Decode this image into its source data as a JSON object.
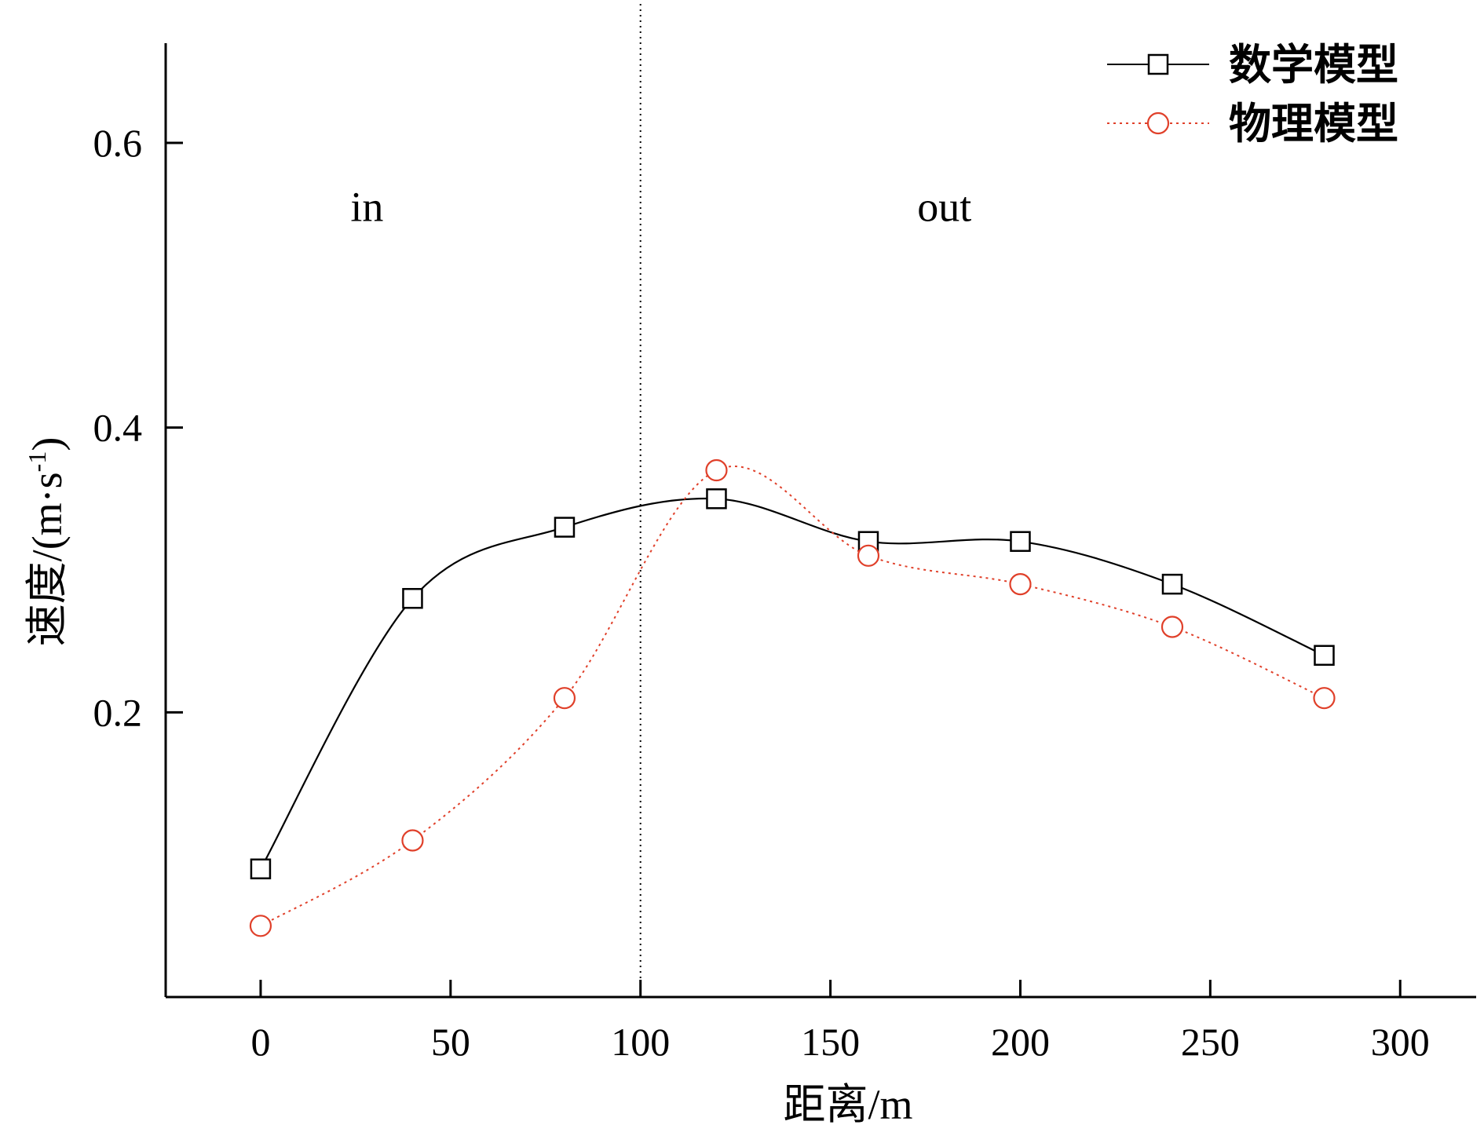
{
  "chart_data": {
    "type": "line",
    "xlabel": "距离/m",
    "ylabel": "速度/(m·s",
    "ylabel_sup": "-1",
    "ylabel_end": ")",
    "xlim": [
      -25,
      320
    ],
    "ylim": [
      0,
      0.67
    ],
    "xticks": [
      0,
      50,
      100,
      150,
      200,
      250,
      300
    ],
    "yticks": [
      0.2,
      0.4,
      0.6
    ],
    "xtick_labels": [
      "0",
      "50",
      "100",
      "150",
      "200",
      "250",
      "300"
    ],
    "ytick_labels": [
      "0.2",
      "0.4",
      "0.6"
    ],
    "divider_x": 100,
    "annotations": [
      {
        "text": "in",
        "x": 28,
        "y": 0.545
      },
      {
        "text": "out",
        "x": 180,
        "y": 0.545
      }
    ],
    "legend_position": "top-right",
    "series": [
      {
        "name": "数学模型",
        "color": "#000000",
        "marker": "square",
        "line_style": "solid",
        "x": [
          0,
          40,
          80,
          120,
          160,
          200,
          240,
          280
        ],
        "y": [
          0.09,
          0.28,
          0.33,
          0.35,
          0.32,
          0.32,
          0.29,
          0.24
        ]
      },
      {
        "name": "物理模型",
        "color": "#e0402a",
        "marker": "circle",
        "line_style": "dotted",
        "x": [
          0,
          40,
          80,
          120,
          160,
          200,
          240,
          280
        ],
        "y": [
          0.05,
          0.11,
          0.21,
          0.37,
          0.31,
          0.29,
          0.26,
          0.21
        ]
      }
    ]
  }
}
